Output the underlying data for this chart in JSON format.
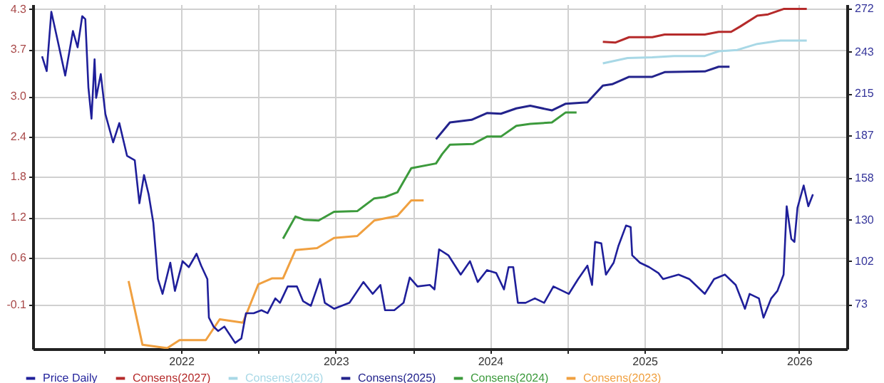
{
  "chart_data": {
    "type": "line",
    "legend": "bottom",
    "grid": true,
    "xlim": [
      2021.04,
      2026.31
    ],
    "xticks": [
      {
        "value": 2021.5,
        "label": null
      },
      2022,
      {
        "value": 2022.5,
        "label": null
      },
      2023,
      {
        "value": 2023.5,
        "label": null
      },
      2024,
      {
        "value": 2024.5,
        "label": null
      },
      2025,
      {
        "value": 2025.5,
        "label": null
      },
      2026
    ],
    "ylim": [
      -0.76,
      4.37
    ],
    "yticks": [
      -0.1,
      0.6,
      1.2,
      1.8,
      2.4,
      {
        "value": 3.0,
        "label": "3.0"
      },
      3.7,
      4.3
    ],
    "y2lim": [
      43,
      275
    ],
    "y2ticks": [
      73,
      102,
      130,
      158,
      187,
      215,
      243,
      272
    ],
    "series": [
      {
        "name": "Price Daily",
        "color": "#1f1f9a",
        "axis": "y2",
        "x": [
          2021.1,
          2021.13,
          2021.16,
          2021.2,
          2021.25,
          2021.3,
          2021.33,
          2021.36,
          2021.38,
          2021.4,
          2021.42,
          2021.44,
          2021.45,
          2021.48,
          2021.51,
          2021.56,
          2021.6,
          2021.65,
          2021.7,
          2021.73,
          2021.76,
          2021.79,
          2021.82,
          2021.85,
          2021.88,
          2021.93,
          2021.96,
          2022.01,
          2022.05,
          2022.1,
          2022.13,
          2022.17,
          2022.18,
          2022.21,
          2022.24,
          2022.28,
          2022.35,
          2022.39,
          2022.42,
          2022.47,
          2022.52,
          2022.56,
          2022.61,
          2022.64,
          2022.69,
          2022.75,
          2022.79,
          2022.84,
          2022.9,
          2022.93,
          2022.99,
          2023.09,
          2023.18,
          2023.24,
          2023.29,
          2023.32,
          2023.38,
          2023.44,
          2023.48,
          2023.53,
          2023.61,
          2023.64,
          2023.67,
          2023.73,
          2023.81,
          2023.87,
          2023.92,
          2023.98,
          2024.04,
          2024.09,
          2024.12,
          2024.15,
          2024.18,
          2024.23,
          2024.29,
          2024.35,
          2024.41,
          2024.51,
          2024.57,
          2024.63,
          2024.66,
          2024.68,
          2024.72,
          2024.75,
          2024.8,
          2024.83,
          2024.88,
          2024.91,
          2024.92,
          2024.97,
          2025.03,
          2025.09,
          2025.12,
          2025.22,
          2025.29,
          2025.39,
          2025.45,
          2025.52,
          2025.59,
          2025.65,
          2025.68,
          2025.74,
          2025.77,
          2025.82,
          2025.86,
          2025.9,
          2025.92,
          2025.95,
          2025.97,
          2025.99,
          2026.03,
          2026.06,
          2026.09
        ],
        "values": [
          240,
          230,
          270,
          251,
          227,
          257,
          246,
          267,
          265,
          219,
          198,
          238,
          212,
          228,
          201,
          182,
          195,
          173,
          170,
          141,
          160,
          147,
          128,
          90,
          80,
          101,
          82,
          102,
          98,
          107,
          99,
          90,
          64,
          58,
          55,
          58,
          47,
          50,
          67,
          67,
          69,
          67,
          77,
          74,
          85,
          85,
          75,
          72,
          90,
          74,
          70,
          74,
          88,
          80,
          86,
          69,
          69,
          74,
          91,
          85,
          86,
          83,
          110,
          106,
          93,
          102,
          88,
          96,
          94,
          83,
          98,
          98,
          74,
          74,
          77,
          74,
          85,
          80,
          90,
          99,
          86,
          115,
          114,
          93,
          101,
          112,
          126,
          125,
          106,
          101,
          98,
          94,
          90,
          93,
          90,
          80,
          90,
          93,
          86,
          70,
          80,
          77,
          64,
          77,
          82,
          93,
          139,
          117,
          115,
          138,
          153,
          139,
          147
        ]
      },
      {
        "name": "Consens(2027)",
        "color": "#b52a2a",
        "x": [
          2024.73,
          2024.81,
          2024.9,
          2025.05,
          2025.13,
          2025.39,
          2025.48,
          2025.56,
          2025.62,
          2025.73,
          2025.8,
          2025.9,
          2026.05
        ],
        "values": [
          3.81,
          3.8,
          3.88,
          3.88,
          3.92,
          3.92,
          3.96,
          3.96,
          4.04,
          4.2,
          4.22,
          4.3,
          4.3
        ]
      },
      {
        "name": "Consens(2026)",
        "color": "#a8d8e6",
        "x": [
          2024.73,
          2024.89,
          2025.05,
          2025.19,
          2025.39,
          2025.48,
          2025.6,
          2025.73,
          2025.88,
          2026.05
        ],
        "values": [
          3.49,
          3.57,
          3.58,
          3.6,
          3.6,
          3.67,
          3.69,
          3.78,
          3.83,
          3.83
        ]
      },
      {
        "name": "Consens(2025)",
        "color": "#23238c",
        "x": [
          2023.65,
          2023.74,
          2023.88,
          2023.98,
          2024.07,
          2024.17,
          2024.26,
          2024.4,
          2024.49,
          2024.63,
          2024.73,
          2024.79,
          2024.9,
          2025.05,
          2025.13,
          2025.39,
          2025.48,
          2025.55
        ],
        "values": [
          2.36,
          2.61,
          2.65,
          2.75,
          2.74,
          2.82,
          2.86,
          2.79,
          2.89,
          2.91,
          3.16,
          3.18,
          3.29,
          3.29,
          3.36,
          3.37,
          3.44,
          3.44
        ]
      },
      {
        "name": "Consens(2024)",
        "color": "#3c9a3c",
        "x": [
          2022.66,
          2022.74,
          2022.8,
          2022.89,
          2022.99,
          2023.14,
          2023.25,
          2023.32,
          2023.4,
          2023.49,
          2023.65,
          2023.69,
          2023.74,
          2023.89,
          2023.98,
          2024.07,
          2024.17,
          2024.26,
          2024.4,
          2024.49,
          2024.56
        ],
        "values": [
          0.88,
          1.21,
          1.16,
          1.15,
          1.28,
          1.29,
          1.48,
          1.5,
          1.57,
          1.93,
          2.0,
          2.14,
          2.28,
          2.29,
          2.4,
          2.4,
          2.56,
          2.59,
          2.61,
          2.76,
          2.76
        ]
      },
      {
        "name": "Consens(2023)",
        "color": "#f0a040",
        "x": [
          2021.66,
          2021.75,
          2021.91,
          2021.99,
          2022.16,
          2022.25,
          2022.4,
          2022.5,
          2022.59,
          2022.66,
          2022.74,
          2022.88,
          2022.99,
          2023.14,
          2023.25,
          2023.4,
          2023.49,
          2023.57
        ],
        "values": [
          0.25,
          -0.7,
          -0.75,
          -0.63,
          -0.63,
          -0.32,
          -0.37,
          0.2,
          0.29,
          0.29,
          0.71,
          0.74,
          0.89,
          0.92,
          1.15,
          1.22,
          1.45,
          1.45
        ]
      }
    ]
  }
}
